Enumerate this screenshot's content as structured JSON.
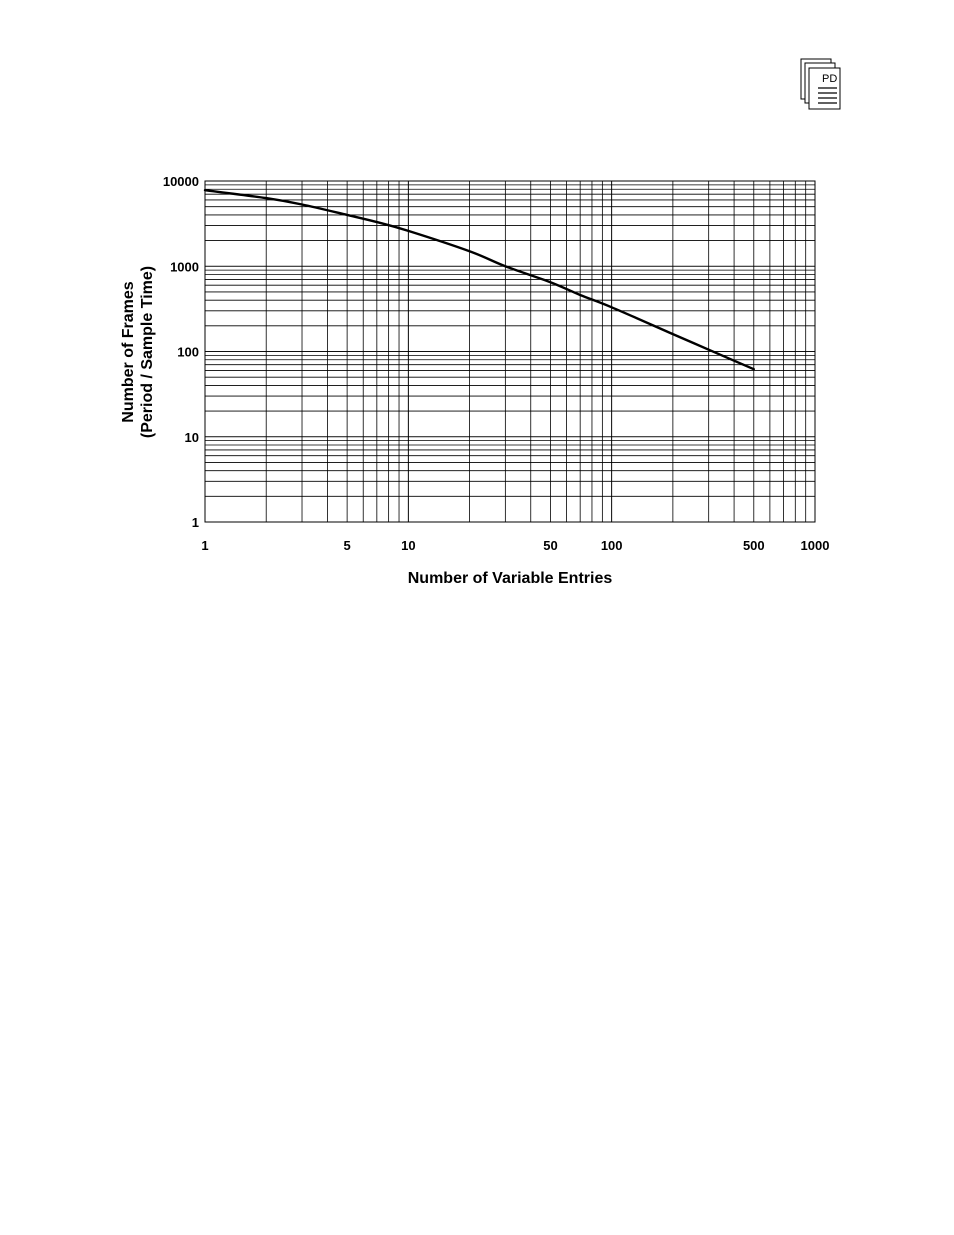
{
  "header": {
    "icon": "pd-document-stack-icon",
    "icon_text": "PD"
  },
  "chart_data": {
    "type": "line",
    "title": "",
    "xlabel": "Number of Variable Entries",
    "ylabel_lines": [
      "Number of Frames",
      "(Period / Sample Time)"
    ],
    "x_scale": "log",
    "y_scale": "log",
    "xlim": [
      1,
      1000
    ],
    "ylim": [
      1,
      10000
    ],
    "x_tick_labels": [
      "1",
      "5",
      "10",
      "50",
      "100",
      "500",
      "1000"
    ],
    "y_tick_labels": [
      "1",
      "10",
      "100",
      "1000",
      "10000"
    ],
    "grid": true,
    "series": [
      {
        "x": [
          1,
          2,
          3,
          5,
          7,
          10,
          20,
          30,
          50,
          70,
          100,
          200,
          300,
          500
        ],
        "y": [
          7800,
          6300,
          5300,
          4000,
          3300,
          2600,
          1500,
          1000,
          650,
          460,
          330,
          160,
          105,
          62
        ],
        "color": "#000000"
      }
    ]
  }
}
